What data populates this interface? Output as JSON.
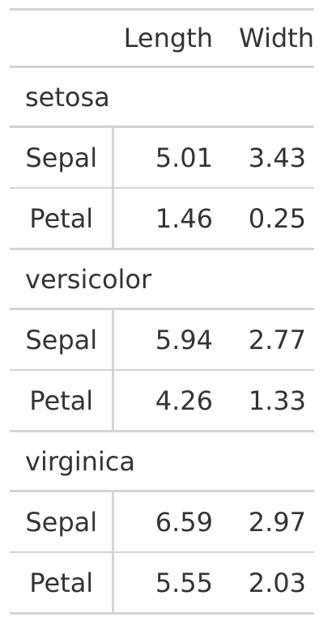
{
  "chart_data": {
    "type": "table",
    "columns": [
      "",
      "Length",
      "Width"
    ],
    "groups": [
      {
        "name": "setosa",
        "rows": [
          {
            "label": "Sepal",
            "length": "5.01",
            "width": "3.43"
          },
          {
            "label": "Petal",
            "length": "1.46",
            "width": "0.25"
          }
        ]
      },
      {
        "name": "versicolor",
        "rows": [
          {
            "label": "Sepal",
            "length": "5.94",
            "width": "2.77"
          },
          {
            "label": "Petal",
            "length": "4.26",
            "width": "1.33"
          }
        ]
      },
      {
        "name": "virginica",
        "rows": [
          {
            "label": "Sepal",
            "length": "6.59",
            "width": "2.97"
          },
          {
            "label": "Petal",
            "length": "5.55",
            "width": "2.03"
          }
        ]
      }
    ]
  }
}
